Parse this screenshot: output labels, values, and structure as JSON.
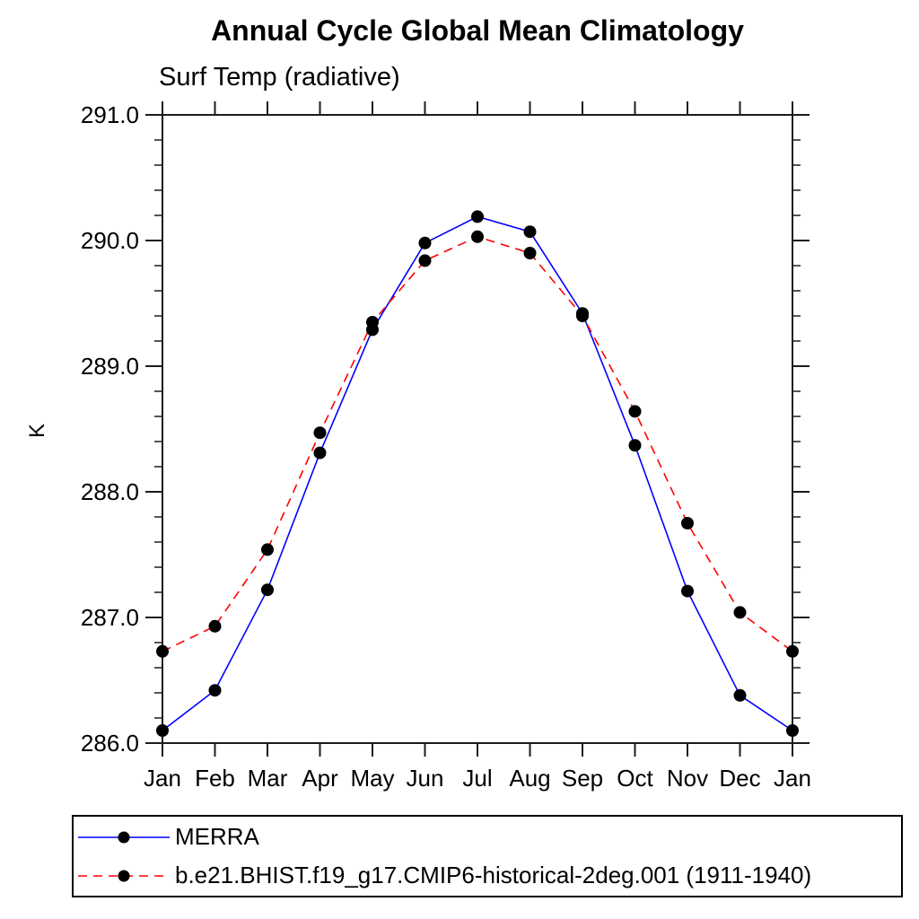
{
  "colors": {
    "background": "#ffffff",
    "axis": "#1c1c1c",
    "merra_line": "#0000ff",
    "model_line": "#ff0000",
    "marker": "#000000"
  },
  "chart_data": {
    "type": "line",
    "title": "Annual Cycle Global Mean Climatology",
    "subtitle": "Surf Temp (radiative)",
    "xlabel": "",
    "ylabel": "K",
    "x_categories": [
      "Jan",
      "Feb",
      "Mar",
      "Apr",
      "May",
      "Jun",
      "Jul",
      "Aug",
      "Sep",
      "Oct",
      "Nov",
      "Dec",
      "Jan"
    ],
    "ylim": [
      286.0,
      291.0
    ],
    "ytick_major_values": [
      286.0,
      287.0,
      288.0,
      289.0,
      290.0,
      291.0
    ],
    "ytick_major_labels": [
      "286.0",
      "287.0",
      "288.0",
      "289.0",
      "290.0",
      "291.0"
    ],
    "ytick_minor_step": 0.2,
    "grid": false,
    "legend_position": "bottom-left-box",
    "series": [
      {
        "name": "MERRA",
        "line_color": "#0000ff",
        "line_style": "solid",
        "marker": "filled-circle",
        "marker_color": "#000000",
        "values": [
          286.1,
          286.42,
          287.22,
          288.31,
          289.29,
          289.98,
          290.19,
          290.07,
          289.42,
          288.37,
          287.21,
          286.38,
          286.1
        ]
      },
      {
        "name": "b.e21.BHIST.f19_g17.CMIP6-historical-2deg.001 (1911-1940)",
        "line_color": "#ff0000",
        "line_style": "dashed",
        "marker": "filled-circle",
        "marker_color": "#000000",
        "values": [
          286.73,
          286.93,
          287.54,
          288.47,
          289.35,
          289.84,
          290.03,
          289.9,
          289.4,
          288.64,
          287.75,
          287.04,
          286.73
        ]
      }
    ]
  }
}
